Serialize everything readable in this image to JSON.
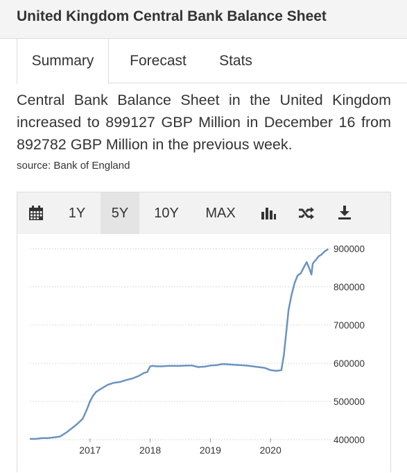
{
  "page": {
    "title": "United Kingdom Central Bank Balance Sheet"
  },
  "tabs": [
    {
      "label": "Summary",
      "active": true
    },
    {
      "label": "Forecast",
      "active": false
    },
    {
      "label": "Stats",
      "active": false
    }
  ],
  "summary": {
    "text": "Central Bank Balance Sheet in the United Kingdom increased to 899127 GBP Million in December 16 from 892782 GBP Million in the previous week.",
    "source": "source: Bank of England"
  },
  "toolbar": {
    "calendar_icon": "calendar-icon",
    "ranges": [
      "1Y",
      "5Y",
      "10Y",
      "MAX"
    ],
    "selected_range": "5Y",
    "chart_type_icon": "bar-chart-icon",
    "compare_icon": "shuffle-icon",
    "download_icon": "download-icon"
  },
  "colors": {
    "line": "#6a93c0",
    "toolbar_bg": "#f2f2f2",
    "selected_bg": "#e4e4e4"
  },
  "chart_data": {
    "type": "line",
    "title": "",
    "xlabel": "",
    "ylabel": "",
    "x_ticks": [
      "2017",
      "2018",
      "2019",
      "2020"
    ],
    "y_ticks": [
      "400000",
      "500000",
      "600000",
      "700000",
      "800000",
      "900000"
    ],
    "ylim": [
      400000,
      900000
    ],
    "xlim": [
      2016.0,
      2021.0
    ],
    "grid": true,
    "series": [
      {
        "x": [
          2016.0,
          2016.1,
          2016.2,
          2016.3,
          2016.4,
          2016.5,
          2016.6,
          2016.7,
          2016.78,
          2016.88,
          2016.95,
          2017.0,
          2017.05,
          2017.1,
          2017.2,
          2017.3,
          2017.4,
          2017.5,
          2017.6,
          2017.7,
          2017.8,
          2017.9,
          2017.95,
          2018.0,
          2018.05,
          2018.1,
          2018.2,
          2018.3,
          2018.4,
          2018.5,
          2018.6,
          2018.7,
          2018.8,
          2018.9,
          2019.0,
          2019.1,
          2019.2,
          2019.3,
          2019.4,
          2019.5,
          2019.6,
          2019.7,
          2019.8,
          2019.9,
          2020.0,
          2020.1,
          2020.18,
          2020.22,
          2020.26,
          2020.3,
          2020.35,
          2020.4,
          2020.45,
          2020.5,
          2020.55,
          2020.6,
          2020.65,
          2020.68,
          2020.7,
          2020.72,
          2020.75,
          2020.8,
          2020.85,
          2020.9,
          2020.96
        ],
        "y": [
          402000,
          402000,
          404000,
          404000,
          406000,
          408000,
          418000,
          430000,
          440000,
          455000,
          480000,
          500000,
          515000,
          525000,
          535000,
          544000,
          549000,
          551000,
          556000,
          560000,
          566000,
          575000,
          577000,
          592000,
          593000,
          592000,
          592000,
          593000,
          593000,
          593000,
          594000,
          594000,
          590000,
          591000,
          594000,
          595000,
          598000,
          597000,
          596000,
          595000,
          594000,
          592000,
          590000,
          588000,
          582000,
          580000,
          582000,
          620000,
          680000,
          740000,
          780000,
          810000,
          830000,
          835000,
          850000,
          865000,
          846000,
          832000,
          860000,
          865000,
          870000,
          880000,
          885000,
          893000,
          899127
        ]
      }
    ]
  }
}
